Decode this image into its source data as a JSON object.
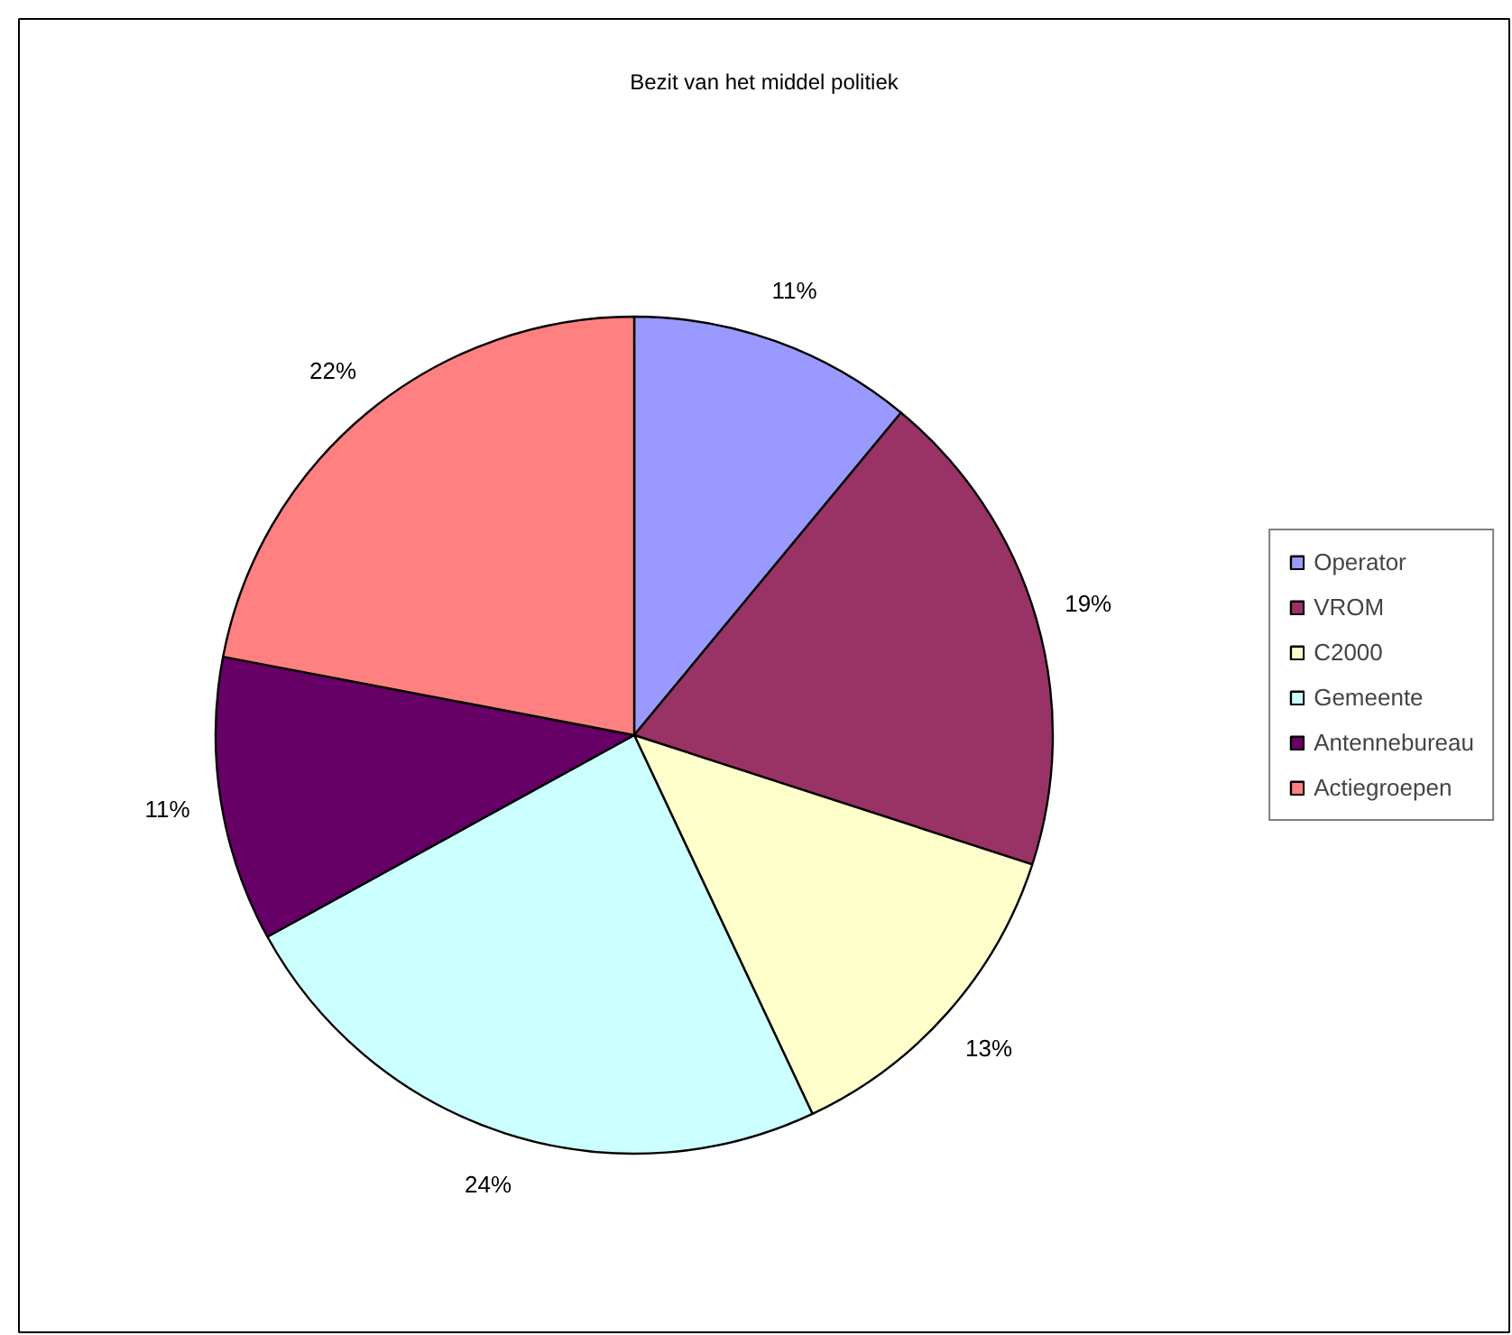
{
  "chart_data": {
    "type": "pie",
    "title": "Bezit van het middel politiek",
    "categories": [
      "Operator",
      "VROM",
      "C2000",
      "Gemeente",
      "Antennebureau",
      "Actiegroepen"
    ],
    "values": [
      11,
      19,
      13,
      24,
      11,
      22
    ],
    "colors": [
      "#9999ff",
      "#993366",
      "#ffffcc",
      "#ccffff",
      "#660066",
      "#ff8080"
    ],
    "value_labels": [
      "11%",
      "19%",
      "13%",
      "24%",
      "11%",
      "22%"
    ],
    "legend": "right"
  }
}
